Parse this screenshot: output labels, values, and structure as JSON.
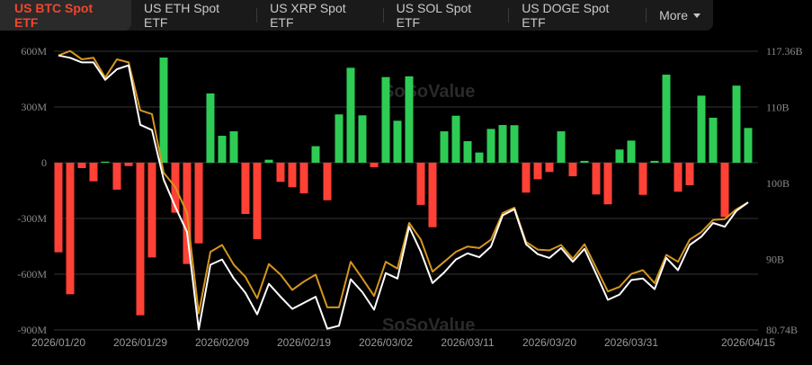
{
  "tabs": [
    {
      "label": "US BTC Spot ETF",
      "active": true
    },
    {
      "label": "US ETH Spot ETF",
      "active": false
    },
    {
      "label": "US XRP Spot ETF",
      "active": false
    },
    {
      "label": "US SOL Spot ETF",
      "active": false
    },
    {
      "label": "US DOGE Spot ETF",
      "active": false
    }
  ],
  "more_label": "More",
  "watermark": "SoSoValue",
  "colors": {
    "active_tab": "#f0462d",
    "inflow": "#2ecc55",
    "outflow": "#ff4136",
    "line_gold": "#d4961e",
    "line_white": "#ffffff"
  },
  "chart_data": {
    "type": "bar+line",
    "x_tick_labels": [
      "2026/01/20",
      "2026/01/29",
      "2026/02/09",
      "2026/02/19",
      "2026/03/02",
      "2026/03/11",
      "2026/03/20",
      "2026/03/31",
      "2026/04/15"
    ],
    "x_tick_indices": [
      0,
      7,
      14,
      21,
      28,
      35,
      42,
      49,
      59
    ],
    "left_axis": {
      "ticks": [
        "600M",
        "300M",
        "0",
        "-300M",
        "-600M",
        "-900M"
      ],
      "tick_values": [
        600,
        300,
        0,
        -300,
        -600,
        -900
      ],
      "range": [
        -900,
        600
      ],
      "unit": "M"
    },
    "right_axis": {
      "ticks": [
        "117.36B",
        "110B",
        "100B",
        "90B",
        "80.74B"
      ],
      "tick_values": [
        117.36,
        110,
        100,
        90,
        80.74
      ],
      "range": [
        80.74,
        117.36
      ],
      "unit": "B"
    },
    "grid": true,
    "bars": [
      -482,
      -708,
      -29,
      -100,
      6,
      -145,
      -18,
      -821,
      -510,
      566,
      -269,
      -545,
      -434,
      373,
      145,
      169,
      -276,
      -411,
      16,
      -103,
      -132,
      -165,
      89,
      -202,
      260,
      511,
      255,
      -24,
      461,
      226,
      465,
      -227,
      -347,
      169,
      253,
      116,
      55,
      182,
      203,
      202,
      -161,
      -89,
      -50,
      169,
      -73,
      10,
      -171,
      -224,
      71,
      119,
      -173,
      10,
      474,
      -156,
      -121,
      361,
      242,
      -292,
      415,
      187
    ],
    "series": [
      {
        "axis": "right",
        "color": "#d4961e",
        "values": [
          116.8,
          117.4,
          116.3,
          116.5,
          113.9,
          116.3,
          115.9,
          109.6,
          109.1,
          101.4,
          99.5,
          96.1,
          82.9,
          91.0,
          91.9,
          89.3,
          87.7,
          84.9,
          89.4,
          88.0,
          86.0,
          87.1,
          88.0,
          83.7,
          83.7,
          89.7,
          87.5,
          85.2,
          89.7,
          88.8,
          94.8,
          92.6,
          88.4,
          89.7,
          91.0,
          91.7,
          91.5,
          92.6,
          96.1,
          96.8,
          92.3,
          91.3,
          91.2,
          91.9,
          90.1,
          92.0,
          88.9,
          85.8,
          86.4,
          88.1,
          88.6,
          86.9,
          90.6,
          89.7,
          92.6,
          93.6,
          95.2,
          95.3,
          96.6,
          97.5
        ]
      },
      {
        "axis": "right",
        "color": "#ffffff",
        "values": [
          116.8,
          116.5,
          115.9,
          115.9,
          113.6,
          115.0,
          115.5,
          107.7,
          107.0,
          100.5,
          96.9,
          93.6,
          80.8,
          89.3,
          90.0,
          87.5,
          85.6,
          82.8,
          86.8,
          85.1,
          83.5,
          84.3,
          85.1,
          80.9,
          81.3,
          87.4,
          85.7,
          83.4,
          88.2,
          87.5,
          94.3,
          91.0,
          86.9,
          88.3,
          90.0,
          90.8,
          90.3,
          91.7,
          95.8,
          96.6,
          92.0,
          90.7,
          90.2,
          91.5,
          89.7,
          91.4,
          88.1,
          84.7,
          85.4,
          87.3,
          87.5,
          86.1,
          90.2,
          88.6,
          91.9,
          93.0,
          94.8,
          94.3,
          96.4,
          97.5
        ]
      }
    ]
  }
}
